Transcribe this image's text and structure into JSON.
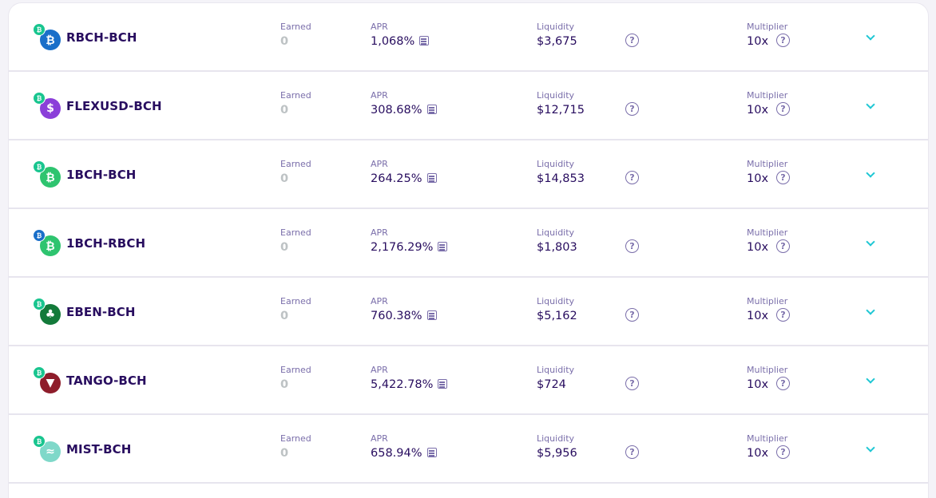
{
  "labels": {
    "earned": "Earned",
    "apr": "APR",
    "liquidity": "Liquidity",
    "multiplier": "Multiplier"
  },
  "farms": [
    {
      "pair": "RBCH-BCH",
      "earned": "0",
      "apr": "1,068%",
      "liquidity": "$3,675",
      "multiplier": "10x",
      "token_color": "#1a6fc9",
      "token_glyph": "₿",
      "small_color": "#19c58f"
    },
    {
      "pair": "FLEXUSD-BCH",
      "earned": "0",
      "apr": "308.68%",
      "liquidity": "$12,715",
      "multiplier": "10x",
      "token_color": "#8b3fd9",
      "token_glyph": "$",
      "small_color": "#19c58f"
    },
    {
      "pair": "1BCH-BCH",
      "earned": "0",
      "apr": "264.25%",
      "liquidity": "$14,853",
      "multiplier": "10x",
      "token_color": "#2ec46f",
      "token_glyph": "₿",
      "small_color": "#19c58f"
    },
    {
      "pair": "1BCH-RBCH",
      "earned": "0",
      "apr": "2,176.29%",
      "liquidity": "$1,803",
      "multiplier": "10x",
      "token_color": "#2ec46f",
      "token_glyph": "₿",
      "small_color": "#1a6fc9"
    },
    {
      "pair": "EBEN-BCH",
      "earned": "0",
      "apr": "760.38%",
      "liquidity": "$5,162",
      "multiplier": "10x",
      "token_color": "#137a3a",
      "token_glyph": "♣",
      "small_color": "#19c58f"
    },
    {
      "pair": "TANGO-BCH",
      "earned": "0",
      "apr": "5,422.78%",
      "liquidity": "$724",
      "multiplier": "10x",
      "token_color": "#8e1d2b",
      "token_glyph": "▼",
      "small_color": "#19c58f"
    },
    {
      "pair": "MIST-BCH",
      "earned": "0",
      "apr": "658.94%",
      "liquidity": "$5,956",
      "multiplier": "10x",
      "token_color": "#7fd8c9",
      "token_glyph": "≈",
      "small_color": "#19c58f"
    }
  ],
  "icons": {
    "calculator": "calculator-icon",
    "help": "help-circle-icon",
    "chevron": "chevron-down-icon"
  }
}
